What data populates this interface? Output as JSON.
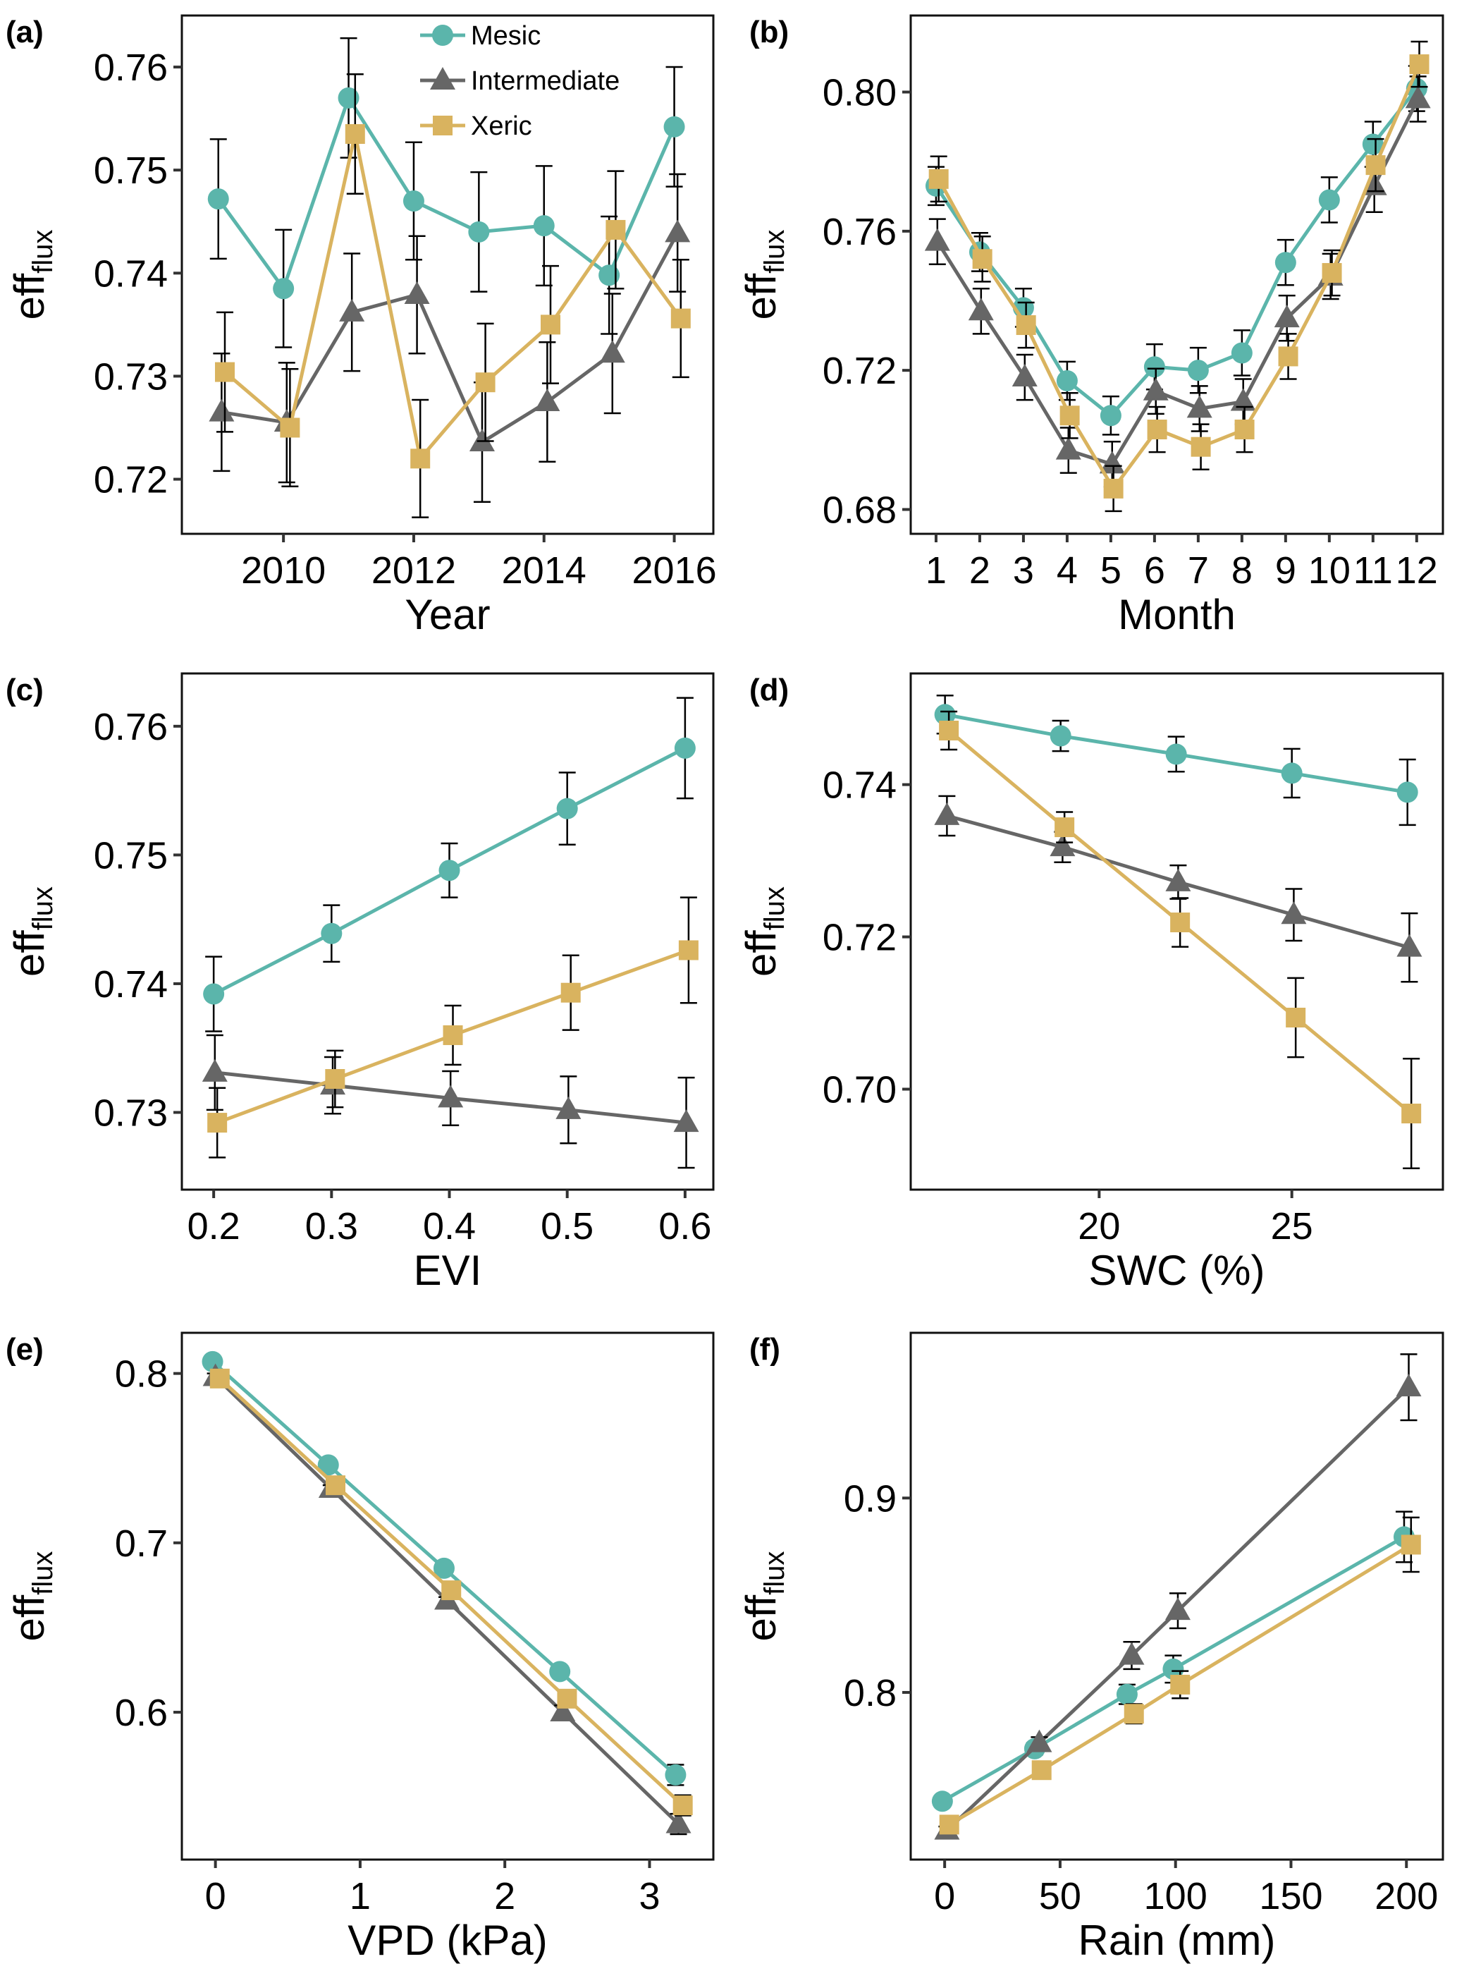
{
  "figure": {
    "legend": [
      {
        "name": "Mesic",
        "color": "#5bb5ab",
        "marker": "circle"
      },
      {
        "name": "Intermediate",
        "color": "#666666",
        "marker": "triangle"
      },
      {
        "name": "Xeric",
        "color": "#d9b35f",
        "marker": "square"
      }
    ],
    "errorbar_color": "#000000"
  },
  "chart_data": [
    {
      "panel": "(a)",
      "type": "line",
      "xlabel": "Year",
      "ylabel": "eff",
      "ylabel_sub": "flux",
      "legend_position": "top-center",
      "xlim": [
        2008.44,
        2016.6
      ],
      "ylim": [
        0.7147,
        0.765
      ],
      "xticks": [
        2010,
        2012,
        2014,
        2016
      ],
      "xtick_labels": [
        "2010",
        "2012",
        "2014",
        "2016"
      ],
      "yticks": [
        0.72,
        0.73,
        0.74,
        0.75,
        0.76
      ],
      "ytick_labels": [
        "0.72",
        "0.73",
        "0.74",
        "0.75",
        "0.76"
      ],
      "x": [
        2009,
        2010,
        2011,
        2012,
        2013,
        2014,
        2015,
        2016
      ],
      "series": [
        {
          "name": "Mesic",
          "values": [
            0.7472,
            0.7385,
            0.757,
            0.747,
            0.744,
            0.7446,
            0.7398,
            0.7542
          ],
          "err": [
            0.0058,
            0.0057,
            0.0058,
            0.0057,
            0.0058,
            0.0058,
            0.0057,
            0.0058
          ],
          "xoffset": 0
        },
        {
          "name": "Intermediate",
          "values": [
            0.7265,
            0.7255,
            0.7362,
            0.7379,
            0.7236,
            0.7275,
            0.7322,
            0.7439
          ],
          "err": [
            0.0057,
            0.0058,
            0.0057,
            0.0057,
            0.0058,
            0.0058,
            0.0058,
            0.0057
          ],
          "xoffset": 0.05
        },
        {
          "name": "Xeric",
          "values": [
            0.7304,
            0.725,
            0.7535,
            0.722,
            0.7294,
            0.735,
            0.7442,
            0.7356
          ],
          "err": [
            0.0058,
            0.0057,
            0.0058,
            0.0057,
            0.0057,
            0.0057,
            0.0057,
            0.0057
          ],
          "xoffset": 0.1
        }
      ]
    },
    {
      "panel": "(b)",
      "type": "line",
      "xlabel": "Month",
      "ylabel": "eff",
      "ylabel_sub": "flux",
      "xlim": [
        0.42,
        12.6
      ],
      "ylim": [
        0.673,
        0.822
      ],
      "xticks": [
        1,
        2,
        3,
        4,
        5,
        6,
        7,
        8,
        9,
        10,
        11,
        12
      ],
      "xtick_labels": [
        "1",
        "2",
        "3",
        "4",
        "5",
        "6",
        "7",
        "8",
        "9",
        "10",
        "11",
        "12"
      ],
      "yticks": [
        0.68,
        0.72,
        0.76,
        0.8
      ],
      "ytick_labels": [
        "0.68",
        "0.72",
        "0.76",
        "0.80"
      ],
      "x": [
        1,
        2,
        3,
        4,
        5,
        6,
        7,
        8,
        9,
        10,
        11,
        12
      ],
      "series": [
        {
          "name": "Mesic",
          "values": [
            0.773,
            0.754,
            0.738,
            0.717,
            0.707,
            0.721,
            0.72,
            0.725,
            0.751,
            0.769,
            0.785,
            0.801
          ],
          "err": [
            0.0055,
            0.0055,
            0.0055,
            0.0055,
            0.0055,
            0.0065,
            0.0065,
            0.0065,
            0.0065,
            0.0065,
            0.0065,
            0.0065
          ],
          "xoffset": 0
        },
        {
          "name": "Intermediate",
          "values": [
            0.757,
            0.737,
            0.718,
            0.697,
            0.693,
            0.714,
            0.709,
            0.711,
            0.735,
            0.747,
            0.773,
            0.798
          ],
          "err": [
            0.0065,
            0.0065,
            0.0065,
            0.0065,
            0.0065,
            0.0065,
            0.0065,
            0.0065,
            0.0065,
            0.0065,
            0.0075,
            0.0065
          ],
          "xoffset": 0.03
        },
        {
          "name": "Xeric",
          "values": [
            0.775,
            0.752,
            0.733,
            0.707,
            0.686,
            0.703,
            0.698,
            0.703,
            0.724,
            0.748,
            0.779,
            0.808
          ],
          "err": [
            0.0065,
            0.0065,
            0.0065,
            0.0065,
            0.0065,
            0.0065,
            0.0065,
            0.0065,
            0.0065,
            0.0065,
            0.0075,
            0.0065
          ],
          "xoffset": 0.06
        }
      ]
    },
    {
      "panel": "(c)",
      "type": "line",
      "xlabel": "EVI",
      "ylabel": "eff",
      "ylabel_sub": "flux",
      "xlim": [
        0.173,
        0.624
      ],
      "ylim": [
        0.724,
        0.7641
      ],
      "xticks": [
        0.2,
        0.3,
        0.4,
        0.5,
        0.6
      ],
      "xtick_labels": [
        "0.2",
        "0.3",
        "0.4",
        "0.5",
        "0.6"
      ],
      "yticks": [
        0.73,
        0.74,
        0.75,
        0.76
      ],
      "ytick_labels": [
        "0.73",
        "0.74",
        "0.75",
        "0.76"
      ],
      "x": [
        0.2,
        0.3,
        0.4,
        0.5,
        0.6
      ],
      "series": [
        {
          "name": "Mesic",
          "values": [
            0.7392,
            0.7439,
            0.7488,
            0.7536,
            0.7583
          ],
          "err": [
            0.0029,
            0.0022,
            0.0021,
            0.0028,
            0.0039
          ],
          "xoffset": 0
        },
        {
          "name": "Intermediate",
          "values": [
            0.7331,
            0.7321,
            0.7311,
            0.7302,
            0.7292
          ],
          "err": [
            0.0029,
            0.0022,
            0.0021,
            0.0026,
            0.0035
          ],
          "xoffset": 0.001
        },
        {
          "name": "Xeric",
          "values": [
            0.7292,
            0.7326,
            0.736,
            0.7393,
            0.7426
          ],
          "err": [
            0.0027,
            0.0022,
            0.0023,
            0.0029,
            0.0041
          ],
          "xoffset": 0.003
        }
      ]
    },
    {
      "panel": "(d)",
      "type": "line",
      "xlabel": "SWC (%)",
      "ylabel": "eff",
      "ylabel_sub": "flux",
      "xlim": [
        15.11,
        28.92
      ],
      "ylim": [
        0.6868,
        0.7546
      ],
      "xticks": [
        20,
        25
      ],
      "xtick_labels": [
        "20",
        "25"
      ],
      "yticks": [
        0.7,
        0.72,
        0.74
      ],
      "ytick_labels": [
        "0.70",
        "0.72",
        "0.74"
      ],
      "x": [
        16,
        19,
        22,
        25,
        28
      ],
      "series": [
        {
          "name": "Mesic",
          "values": [
            0.7492,
            0.7464,
            0.744,
            0.7415,
            0.739
          ],
          "err": [
            0.0025,
            0.002,
            0.0023,
            0.0032,
            0.0043
          ],
          "xoffset": 0
        },
        {
          "name": "Intermediate",
          "values": [
            0.7359,
            0.7318,
            0.7272,
            0.7229,
            0.7186
          ],
          "err": [
            0.0026,
            0.002,
            0.0022,
            0.0034,
            0.0045
          ],
          "xoffset": 0.05
        },
        {
          "name": "Xeric",
          "values": [
            0.7471,
            0.7344,
            0.7219,
            0.7094,
            0.6968
          ],
          "err": [
            0.0025,
            0.002,
            0.0032,
            0.0052,
            0.0072
          ],
          "xoffset": 0.1
        }
      ]
    },
    {
      "panel": "(e)",
      "type": "line",
      "xlabel": "VPD (kPa)",
      "ylabel": "eff",
      "ylabel_sub": "flux",
      "xlim": [
        -0.232,
        3.441
      ],
      "ylim": [
        0.513,
        0.824
      ],
      "xticks": [
        0,
        1,
        2,
        3
      ],
      "xtick_labels": [
        "0",
        "1",
        "2",
        "3"
      ],
      "yticks": [
        0.6,
        0.7,
        0.8
      ],
      "ytick_labels": [
        "0.6",
        "0.7",
        "0.8"
      ],
      "x": [
        0,
        0.8,
        1.6,
        2.4,
        3.2
      ],
      "series": [
        {
          "name": "Mesic",
          "values": [
            0.807,
            0.746,
            0.685,
            0.624,
            0.563
          ],
          "err": [
            0.002,
            0.002,
            0.002,
            0.003,
            0.006
          ],
          "xoffset": -0.02
        },
        {
          "name": "Intermediate",
          "values": [
            0.798,
            0.732,
            0.666,
            0.6,
            0.534
          ],
          "err": [
            0.002,
            0.002,
            0.002,
            0.004,
            0.006
          ],
          "xoffset": 0
        },
        {
          "name": "Xeric",
          "values": [
            0.797,
            0.734,
            0.672,
            0.608,
            0.545
          ],
          "err": [
            0.002,
            0.002,
            0.002,
            0.004,
            0.006
          ],
          "xoffset": 0.03
        }
      ]
    },
    {
      "panel": "(f)",
      "type": "line",
      "xlabel": "Rain (mm)",
      "ylabel": "eff",
      "ylabel_sub": "flux",
      "xlim": [
        -14.7,
        215.8
      ],
      "ylim": [
        0.714,
        0.985
      ],
      "xticks": [
        0,
        50,
        100,
        150,
        200
      ],
      "xtick_labels": [
        "0",
        "50",
        "100",
        "150",
        "200"
      ],
      "yticks": [
        0.8,
        0.9
      ],
      "ytick_labels": [
        "0.8",
        "0.9"
      ],
      "x": [
        0,
        40,
        80,
        100,
        200
      ],
      "series": [
        {
          "name": "Mesic",
          "values": [
            0.744,
            0.771,
            0.799,
            0.812,
            0.88
          ],
          "err": [
            0.002,
            0.003,
            0.005,
            0.007,
            0.013
          ],
          "xoffset": -1
        },
        {
          "name": "Intermediate",
          "values": [
            0.729,
            0.774,
            0.819,
            0.842,
            0.957
          ],
          "err": [
            0.002,
            0.003,
            0.007,
            0.009,
            0.017
          ],
          "xoffset": 1
        },
        {
          "name": "Xeric",
          "values": [
            0.732,
            0.76,
            0.789,
            0.804,
            0.876
          ],
          "err": [
            0.002,
            0.003,
            0.005,
            0.007,
            0.014
          ],
          "xoffset": 2
        }
      ]
    }
  ]
}
